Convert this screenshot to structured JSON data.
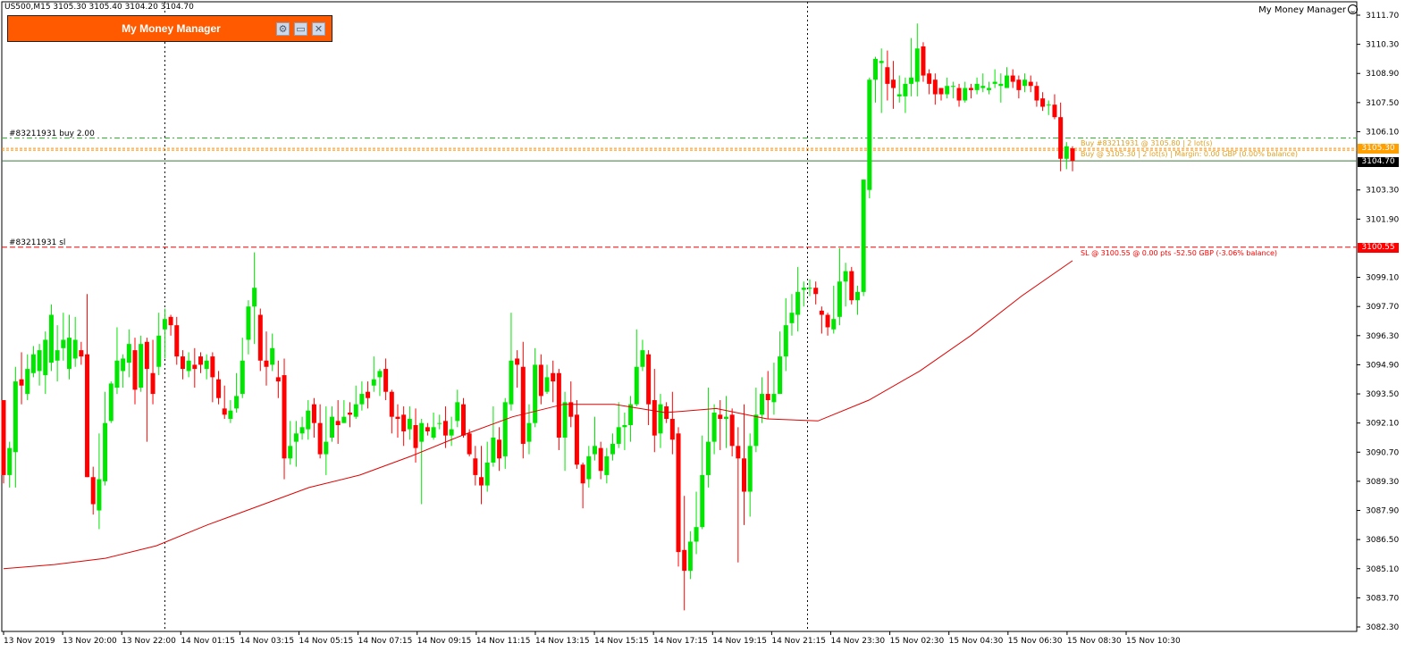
{
  "chart": {
    "symbol_header": "US500,M15  3105.30 3105.40 3104.20 3104.70",
    "ea_name": "My Money Manager"
  },
  "panel": {
    "title": "My Money Manager",
    "buttons": [
      {
        "name": "settings-button",
        "glyph": "⚙"
      },
      {
        "name": "minimize-button",
        "glyph": "▭"
      },
      {
        "name": "close-button",
        "glyph": "✕"
      }
    ]
  },
  "order_labels": {
    "buy_tp": "#83211931 buy 2.00",
    "sl": "#83211931 sl"
  },
  "line_labels": {
    "buy_line_1": "Buy #83211931 @ 3105.80 | 2 lot(s)",
    "buy_line_2": "Buy @ 3105.30 | 2 lot(s) | Margin: 0.00 GBP (0.00% balance)",
    "sl_line": "SL @ 3100.55 @ 0.00 pts -52.50 GBP (-3.06% balance)"
  },
  "price_badges": {
    "ask": "3105.30",
    "bid": "3104.70",
    "sl": "3100.55"
  },
  "colors": {
    "bull": "#00e600",
    "bear": "#ff0000",
    "ma": "#e00000",
    "tp_line": "#2eb82e",
    "ask_line": "#ff8c00",
    "sl_line": "#ff0000",
    "bid_line": "#3a7a3a",
    "panel_bg": "#ff5a00"
  },
  "chart_data": {
    "type": "candlestick",
    "symbol": "US500",
    "timeframe": "M15",
    "ohlc": {
      "open": 3105.3,
      "high": 3105.4,
      "low": 3104.2,
      "close": 3104.7
    },
    "y_ticks": [
      "3111.70",
      "3110.30",
      "3108.90",
      "3107.50",
      "3106.10",
      "3103.30",
      "3101.90",
      "3099.10",
      "3097.70",
      "3096.30",
      "3094.90",
      "3093.50",
      "3092.10",
      "3090.70",
      "3089.30",
      "3087.90",
      "3086.50",
      "3085.10",
      "3083.70",
      "3082.30"
    ],
    "x_ticks": [
      "13 Nov 2019",
      "13 Nov 20:00",
      "13 Nov 22:00",
      "14 Nov 01:15",
      "14 Nov 03:15",
      "14 Nov 05:15",
      "14 Nov 07:15",
      "14 Nov 09:15",
      "14 Nov 11:15",
      "14 Nov 13:15",
      "14 Nov 15:15",
      "14 Nov 17:15",
      "14 Nov 19:15",
      "14 Nov 21:15",
      "14 Nov 23:30",
      "15 Nov 02:30",
      "15 Nov 04:30",
      "15 Nov 06:30",
      "15 Nov 08:30",
      "15 Nov 10:30"
    ],
    "ylim": [
      3082.0,
      3112.2
    ],
    "levels": {
      "buy_entry": 3105.8,
      "ask": 3105.3,
      "bid": 3104.7,
      "stop_loss": 3100.55
    },
    "ma_period_values": [
      3085.1,
      3085.3,
      3085.6,
      3086.2,
      3087.2,
      3088.1,
      3089.0,
      3089.6,
      3090.5,
      3091.5,
      3092.4,
      3093.0,
      3093.0,
      3092.6,
      3092.8,
      3092.3,
      3092.2,
      3093.2,
      3094.6,
      3096.3,
      3098.2,
      3099.9
    ],
    "candles": [
      [
        3093.2,
        3089.6,
        3093.2,
        3089.2
      ],
      [
        3089.6,
        3090.9,
        3091.2,
        3089.0
      ],
      [
        3090.7,
        3094.1,
        3094.8,
        3089.0
      ],
      [
        3094.2,
        3093.9,
        3095.5,
        3093.0
      ],
      [
        3093.5,
        3094.7,
        3095.4,
        3093.2
      ],
      [
        3094.5,
        3095.4,
        3095.8,
        3094.3
      ],
      [
        3094.6,
        3095.6,
        3095.9,
        3093.9
      ],
      [
        3094.4,
        3096.1,
        3096.5,
        3093.5
      ],
      [
        3095.0,
        3097.3,
        3097.8,
        3094.6
      ],
      [
        3095.1,
        3095.6,
        3096.8,
        3094.1
      ],
      [
        3095.7,
        3096.1,
        3097.4,
        3095.1
      ],
      [
        3094.7,
        3096.2,
        3097.3,
        3094.2
      ],
      [
        3095.2,
        3096.1,
        3097.2,
        3094.8
      ],
      [
        3095.6,
        3095.3,
        3096.0,
        3094.9
      ],
      [
        3095.4,
        3089.5,
        3098.3,
        3089.5
      ],
      [
        3089.5,
        3088.2,
        3090.0,
        3087.7
      ],
      [
        3087.9,
        3089.4,
        3091.6,
        3087.0
      ],
      [
        3089.3,
        3092.1,
        3093.6,
        3089.1
      ],
      [
        3092.2,
        3094.0,
        3094.1,
        3092.1
      ],
      [
        3093.8,
        3095.1,
        3096.7,
        3093.5
      ],
      [
        3094.6,
        3095.2,
        3095.4,
        3093.8
      ],
      [
        3095.0,
        3095.9,
        3096.6,
        3094.3
      ],
      [
        3095.6,
        3093.7,
        3096.2,
        3093.0
      ],
      [
        3093.8,
        3095.9,
        3096.3,
        3093.6
      ],
      [
        3096.0,
        3094.7,
        3096.2,
        3091.2
      ],
      [
        3094.5,
        3093.5,
        3096.1,
        3093.0
      ],
      [
        3094.8,
        3096.3,
        3097.4,
        3094.4
      ],
      [
        3096.6,
        3097.1,
        3097.6,
        3095.2
      ],
      [
        3097.2,
        3096.8,
        3097.3,
        3096.3
      ],
      [
        3096.8,
        3095.3,
        3097.2,
        3094.9
      ],
      [
        3095.3,
        3094.7,
        3095.6,
        3094.2
      ],
      [
        3094.6,
        3095.1,
        3095.5,
        3094.3
      ],
      [
        3094.9,
        3094.7,
        3095.7,
        3093.8
      ],
      [
        3095.3,
        3094.9,
        3095.5,
        3094.5
      ],
      [
        3094.7,
        3095.1,
        3095.4,
        3094.2
      ],
      [
        3095.3,
        3094.3,
        3095.5,
        3093.1
      ],
      [
        3094.2,
        3093.3,
        3094.6,
        3093.0
      ],
      [
        3092.8,
        3092.5,
        3093.9,
        3092.3
      ],
      [
        3092.3,
        3092.7,
        3093.2,
        3092.1
      ],
      [
        3092.8,
        3093.4,
        3094.5,
        3092.6
      ],
      [
        3093.5,
        3095.1,
        3096.2,
        3093.3
      ],
      [
        3096.1,
        3097.7,
        3098.0,
        3095.4
      ],
      [
        3097.7,
        3098.6,
        3100.3,
        3095.9
      ],
      [
        3097.3,
        3095.1,
        3097.6,
        3094.6
      ],
      [
        3095.1,
        3094.8,
        3096.5,
        3093.9
      ],
      [
        3094.9,
        3095.7,
        3096.4,
        3094.6
      ],
      [
        3094.3,
        3094.1,
        3095.1,
        3093.3
      ],
      [
        3094.4,
        3090.4,
        3095.2,
        3089.4
      ],
      [
        3090.4,
        3091.0,
        3092.2,
        3090.1
      ],
      [
        3091.2,
        3091.6,
        3092.2,
        3090.0
      ],
      [
        3091.6,
        3091.9,
        3092.4,
        3091.3
      ],
      [
        3091.8,
        3092.7,
        3093.2,
        3091.3
      ],
      [
        3093.0,
        3092.1,
        3093.3,
        3091.4
      ],
      [
        3092.1,
        3090.6,
        3093.0,
        3090.4
      ],
      [
        3090.6,
        3091.2,
        3092.9,
        3089.6
      ],
      [
        3091.4,
        3092.4,
        3092.9,
        3091.2
      ],
      [
        3092.2,
        3092.0,
        3093.2,
        3091.1
      ],
      [
        3092.1,
        3092.4,
        3093.2,
        3092.1
      ],
      [
        3092.6,
        3092.5,
        3093.1,
        3091.9
      ],
      [
        3092.4,
        3093.0,
        3093.9,
        3092.3
      ],
      [
        3093.0,
        3093.5,
        3094.1,
        3092.7
      ],
      [
        3093.6,
        3093.3,
        3094.1,
        3092.8
      ],
      [
        3093.9,
        3094.2,
        3095.3,
        3093.6
      ],
      [
        3094.3,
        3094.6,
        3094.7,
        3093.4
      ],
      [
        3094.7,
        3093.6,
        3095.2,
        3093.2
      ],
      [
        3093.6,
        3092.4,
        3093.7,
        3091.6
      ],
      [
        3092.4,
        3092.3,
        3093.0,
        3091.4
      ],
      [
        3092.5,
        3091.7,
        3092.9,
        3091.0
      ],
      [
        3091.8,
        3092.3,
        3092.9,
        3091.3
      ],
      [
        3092.0,
        3090.9,
        3092.8,
        3090.2
      ],
      [
        3091.2,
        3092.1,
        3092.3,
        3088.2
      ],
      [
        3091.9,
        3091.7,
        3092.1,
        3091.5
      ],
      [
        3091.4,
        3091.9,
        3092.6,
        3091.3
      ],
      [
        3092.1,
        3092.1,
        3092.5,
        3091.8
      ],
      [
        3092.2,
        3091.5,
        3092.9,
        3090.9
      ],
      [
        3091.5,
        3091.8,
        3092.4,
        3091.0
      ],
      [
        3092.2,
        3093.1,
        3093.7,
        3091.9
      ],
      [
        3093.0,
        3091.5,
        3093.3,
        3091.4
      ],
      [
        3091.6,
        3090.6,
        3091.8,
        3090.5
      ],
      [
        3090.4,
        3089.6,
        3091.0,
        3089.1
      ],
      [
        3089.5,
        3089.1,
        3091.0,
        3088.2
      ],
      [
        3089.1,
        3090.2,
        3091.2,
        3088.8
      ],
      [
        3090.2,
        3091.4,
        3092.9,
        3090.0
      ],
      [
        3091.3,
        3090.4,
        3091.9,
        3089.8
      ],
      [
        3090.5,
        3093.1,
        3093.3,
        3089.9
      ],
      [
        3093.0,
        3095.1,
        3097.4,
        3092.7
      ],
      [
        3095.2,
        3094.9,
        3095.6,
        3093.8
      ],
      [
        3094.8,
        3091.1,
        3096.0,
        3090.4
      ],
      [
        3091.2,
        3092.1,
        3093.0,
        3090.6
      ],
      [
        3092.1,
        3094.9,
        3095.7,
        3091.9
      ],
      [
        3094.9,
        3093.4,
        3095.4,
        3093.0
      ],
      [
        3093.6,
        3094.3,
        3094.9,
        3093.5
      ],
      [
        3094.5,
        3094.1,
        3095.1,
        3093.1
      ],
      [
        3094.5,
        3091.4,
        3094.7,
        3090.8
      ],
      [
        3091.4,
        3093.1,
        3093.6,
        3089.8
      ],
      [
        3093.1,
        3092.4,
        3094.1,
        3091.9
      ],
      [
        3092.5,
        3090.1,
        3093.2,
        3089.9
      ],
      [
        3090.1,
        3089.2,
        3090.2,
        3088.0
      ],
      [
        3089.4,
        3090.5,
        3091.0,
        3089.0
      ],
      [
        3090.6,
        3091.0,
        3092.4,
        3090.3
      ],
      [
        3090.9,
        3089.8,
        3091.2,
        3089.4
      ],
      [
        3089.6,
        3090.5,
        3090.9,
        3089.2
      ],
      [
        3090.6,
        3091.1,
        3091.6,
        3090.3
      ],
      [
        3091.1,
        3091.9,
        3093.1,
        3090.9
      ],
      [
        3091.9,
        3092.0,
        3092.6,
        3090.8
      ],
      [
        3092.0,
        3093.0,
        3093.4,
        3091.2
      ],
      [
        3093.0,
        3094.8,
        3096.6,
        3092.9
      ],
      [
        3094.8,
        3095.6,
        3096.1,
        3094.6
      ],
      [
        3095.4,
        3093.0,
        3095.6,
        3092.0
      ],
      [
        3093.2,
        3091.5,
        3094.7,
        3090.7
      ],
      [
        3091.6,
        3093.0,
        3093.5,
        3090.9
      ],
      [
        3092.9,
        3092.3,
        3093.1,
        3092.1
      ],
      [
        3092.3,
        3091.3,
        3093.6,
        3090.6
      ],
      [
        3091.6,
        3085.9,
        3091.9,
        3085.2
      ],
      [
        3086.0,
        3085.0,
        3088.6,
        3083.1
      ],
      [
        3085.0,
        3086.4,
        3086.9,
        3084.6
      ],
      [
        3086.4,
        3087.1,
        3088.8,
        3085.8
      ],
      [
        3087.1,
        3089.6,
        3091.5,
        3087.0
      ],
      [
        3089.6,
        3091.2,
        3093.8,
        3089.0
      ],
      [
        3091.2,
        3092.6,
        3093.0,
        3090.6
      ],
      [
        3092.5,
        3092.3,
        3093.2,
        3090.8
      ],
      [
        3092.3,
        3092.4,
        3093.4,
        3090.9
      ],
      [
        3092.5,
        3091.0,
        3092.8,
        3090.5
      ],
      [
        3091.0,
        3090.4,
        3091.9,
        3085.4
      ],
      [
        3090.4,
        3088.8,
        3093.0,
        3087.2
      ],
      [
        3088.8,
        3091.0,
        3091.6,
        3087.6
      ],
      [
        3091.0,
        3092.5,
        3093.8,
        3090.7
      ],
      [
        3092.5,
        3093.5,
        3094.3,
        3092.1
      ],
      [
        3093.5,
        3093.2,
        3094.6,
        3092.3
      ],
      [
        3093.1,
        3093.5,
        3095.0,
        3092.5
      ],
      [
        3093.5,
        3095.3,
        3096.5,
        3093.5
      ],
      [
        3095.3,
        3096.8,
        3098.1,
        3094.6
      ],
      [
        3096.9,
        3097.4,
        3098.3,
        3096.3
      ],
      [
        3097.3,
        3098.4,
        3099.6,
        3096.5
      ],
      [
        3098.5,
        3098.6,
        3098.9,
        3097.7
      ],
      [
        3098.6,
        3098.6,
        3099.0,
        3098.2
      ],
      [
        3098.6,
        3098.3,
        3098.9,
        3097.8
      ],
      [
        3097.5,
        3097.3,
        3097.7,
        3096.4
      ],
      [
        3097.3,
        3096.7,
        3097.4,
        3096.3
      ],
      [
        3096.6,
        3097.1,
        3098.7,
        3096.4
      ],
      [
        3097.2,
        3098.9,
        3100.5,
        3096.8
      ],
      [
        3098.9,
        3099.4,
        3099.8,
        3097.7
      ],
      [
        3099.4,
        3098.0,
        3099.6,
        3097.8
      ],
      [
        3098.0,
        3098.4,
        3098.7,
        3097.3
      ],
      [
        3098.4,
        3103.8,
        3103.8,
        3098.2
      ],
      [
        3103.3,
        3108.6,
        3108.7,
        3102.9
      ],
      [
        3108.6,
        3109.6,
        3109.7,
        3107.5
      ],
      [
        3109.4,
        3109.5,
        3110.1,
        3107.0
      ],
      [
        3109.2,
        3108.4,
        3110.0,
        3107.6
      ],
      [
        3108.6,
        3108.2,
        3109.5,
        3107.2
      ],
      [
        3107.8,
        3107.9,
        3108.8,
        3107.5
      ],
      [
        3107.8,
        3108.4,
        3108.7,
        3107.0
      ],
      [
        3108.4,
        3108.7,
        3110.6,
        3107.8
      ],
      [
        3108.5,
        3110.1,
        3111.3,
        3107.8
      ],
      [
        3110.2,
        3108.8,
        3110.4,
        3108.5
      ],
      [
        3108.9,
        3108.4,
        3109.1,
        3107.9
      ],
      [
        3108.6,
        3107.9,
        3108.9,
        3107.4
      ],
      [
        3108.2,
        3107.9,
        3108.2,
        3107.6
      ],
      [
        3107.9,
        3108.3,
        3108.7,
        3107.7
      ],
      [
        3108.3,
        3108.3,
        3108.5,
        3107.7
      ],
      [
        3108.2,
        3107.6,
        3108.4,
        3107.3
      ],
      [
        3107.6,
        3108.2,
        3108.5,
        3107.5
      ],
      [
        3108.2,
        3108.1,
        3108.4,
        3107.7
      ],
      [
        3108.1,
        3108.4,
        3108.7,
        3107.9
      ],
      [
        3108.2,
        3108.3,
        3108.9,
        3108.0
      ],
      [
        3108.1,
        3108.2,
        3108.5,
        3107.9
      ],
      [
        3108.4,
        3108.5,
        3109.1,
        3108.2
      ],
      [
        3108.3,
        3108.4,
        3108.9,
        3107.5
      ],
      [
        3108.2,
        3108.8,
        3109.2,
        3108.2
      ],
      [
        3108.8,
        3108.5,
        3109.1,
        3108.2
      ],
      [
        3108.6,
        3108.1,
        3108.8,
        3107.7
      ],
      [
        3108.3,
        3108.6,
        3108.9,
        3108.0
      ],
      [
        3108.5,
        3108.3,
        3108.8,
        3108.0
      ],
      [
        3108.3,
        3107.6,
        3108.5,
        3107.3
      ],
      [
        3107.7,
        3107.3,
        3108.0,
        3107.1
      ],
      [
        3107.4,
        3107.4,
        3107.6,
        3106.9
      ],
      [
        3107.4,
        3106.8,
        3107.9,
        3106.7
      ],
      [
        3106.8,
        3104.8,
        3107.5,
        3104.2
      ],
      [
        3104.8,
        3105.4,
        3105.6,
        3104.3
      ],
      [
        3105.3,
        3104.7,
        3105.4,
        3104.2
      ]
    ]
  }
}
